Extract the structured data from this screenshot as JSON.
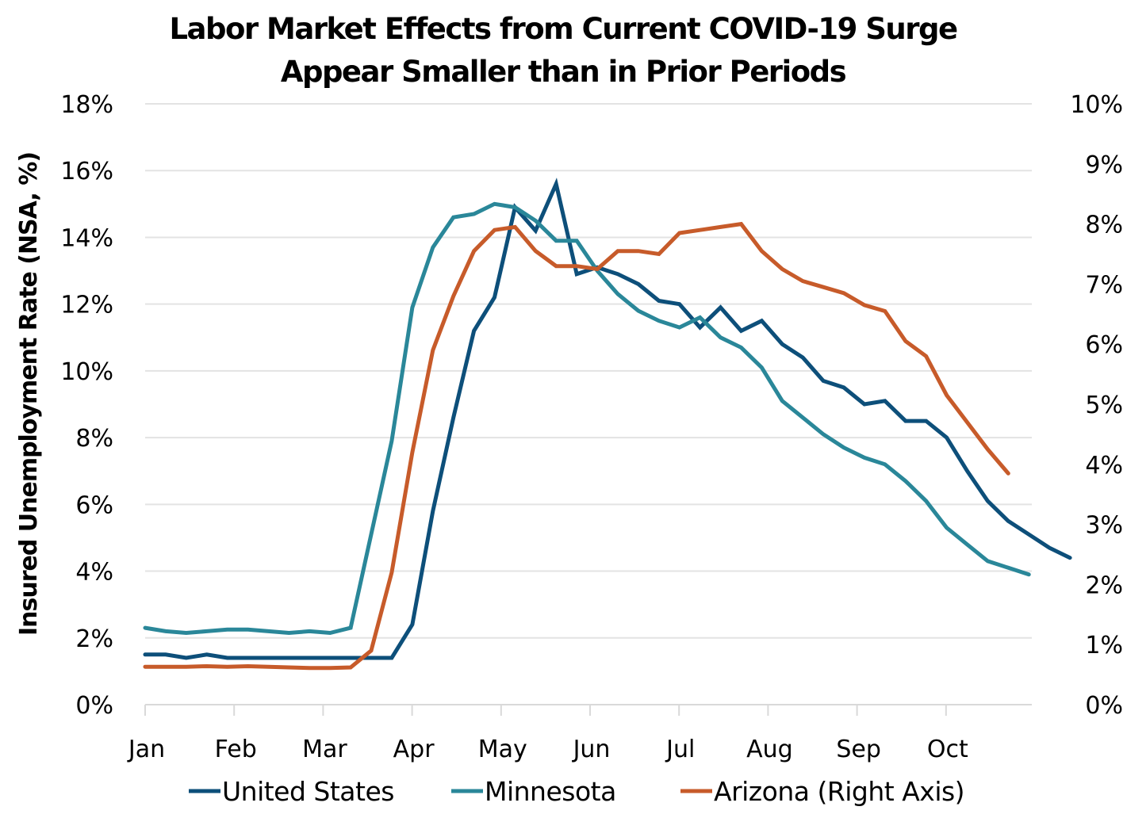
{
  "chart_data": {
    "type": "line",
    "title": "Labor Market Effects from Current COVID-19 Surge Appear Smaller than in Prior Periods",
    "title_lines": [
      "Labor Market Effects from Current COVID-19 Surge",
      "Appear Smaller than in Prior Periods"
    ],
    "ylabel": "Insured Unemployment Rate (NSA, %)",
    "ylabel_right": "",
    "xlabel": "",
    "ylim": [
      0,
      18
    ],
    "ylim_right": [
      0,
      10
    ],
    "yticks": [
      "0%",
      "2%",
      "4%",
      "6%",
      "8%",
      "10%",
      "12%",
      "14%",
      "16%",
      "18%"
    ],
    "yticks_right": [
      "0%",
      "1%",
      "2%",
      "3%",
      "4%",
      "5%",
      "6%",
      "7%",
      "8%",
      "9%",
      "10%"
    ],
    "x_categories": [
      "Jan",
      "Feb",
      "Mar",
      "Apr",
      "May",
      "Jun",
      "Jul",
      "Aug",
      "Sep",
      "Oct"
    ],
    "grid": "horizontal",
    "legend_position": "bottom",
    "x_unit": "weeks since start of Jan (4.33 weeks per month)",
    "series": [
      {
        "name": "United States",
        "axis": "left",
        "color": "#0d4f7a",
        "values": [
          1.5,
          1.5,
          1.4,
          1.5,
          1.4,
          1.4,
          1.4,
          1.4,
          1.4,
          1.4,
          1.4,
          1.4,
          1.4,
          2.4,
          5.8,
          8.6,
          11.2,
          12.2,
          14.9,
          14.2,
          15.6,
          12.9,
          13.1,
          12.9,
          12.6,
          12.1,
          12.0,
          11.3,
          11.9,
          11.2,
          11.5,
          10.8,
          10.4,
          9.7,
          9.5,
          9.0,
          9.1,
          8.5,
          8.5,
          8.0,
          7.0,
          6.1,
          5.5,
          5.1,
          4.7,
          4.4
        ]
      },
      {
        "name": "Minnesota",
        "axis": "left",
        "color": "#2a8799",
        "values": [
          2.3,
          2.2,
          2.15,
          2.2,
          2.25,
          2.25,
          2.2,
          2.15,
          2.2,
          2.15,
          2.3,
          5.1,
          7.9,
          11.9,
          13.7,
          14.6,
          14.7,
          15.0,
          14.9,
          14.5,
          13.9,
          13.9,
          13.0,
          12.3,
          11.8,
          11.5,
          11.3,
          11.6,
          11.0,
          10.7,
          10.1,
          9.1,
          8.6,
          8.1,
          7.7,
          7.4,
          7.2,
          6.7,
          6.1,
          5.3,
          4.8,
          4.3,
          4.1,
          3.9
        ]
      },
      {
        "name": "Arizona (Right Axis)",
        "axis": "right",
        "color": "#c75b2a",
        "values": [
          0.63,
          0.63,
          0.63,
          0.64,
          0.63,
          0.64,
          0.63,
          0.62,
          0.61,
          0.61,
          0.62,
          0.9,
          2.2,
          4.2,
          5.9,
          6.8,
          7.55,
          7.9,
          7.95,
          7.55,
          7.3,
          7.3,
          7.25,
          7.55,
          7.55,
          7.5,
          7.85,
          7.9,
          7.95,
          8.0,
          7.55,
          7.25,
          7.05,
          6.95,
          6.85,
          6.65,
          6.55,
          6.05,
          5.8,
          5.15,
          4.7,
          4.25,
          3.85
        ]
      }
    ]
  }
}
